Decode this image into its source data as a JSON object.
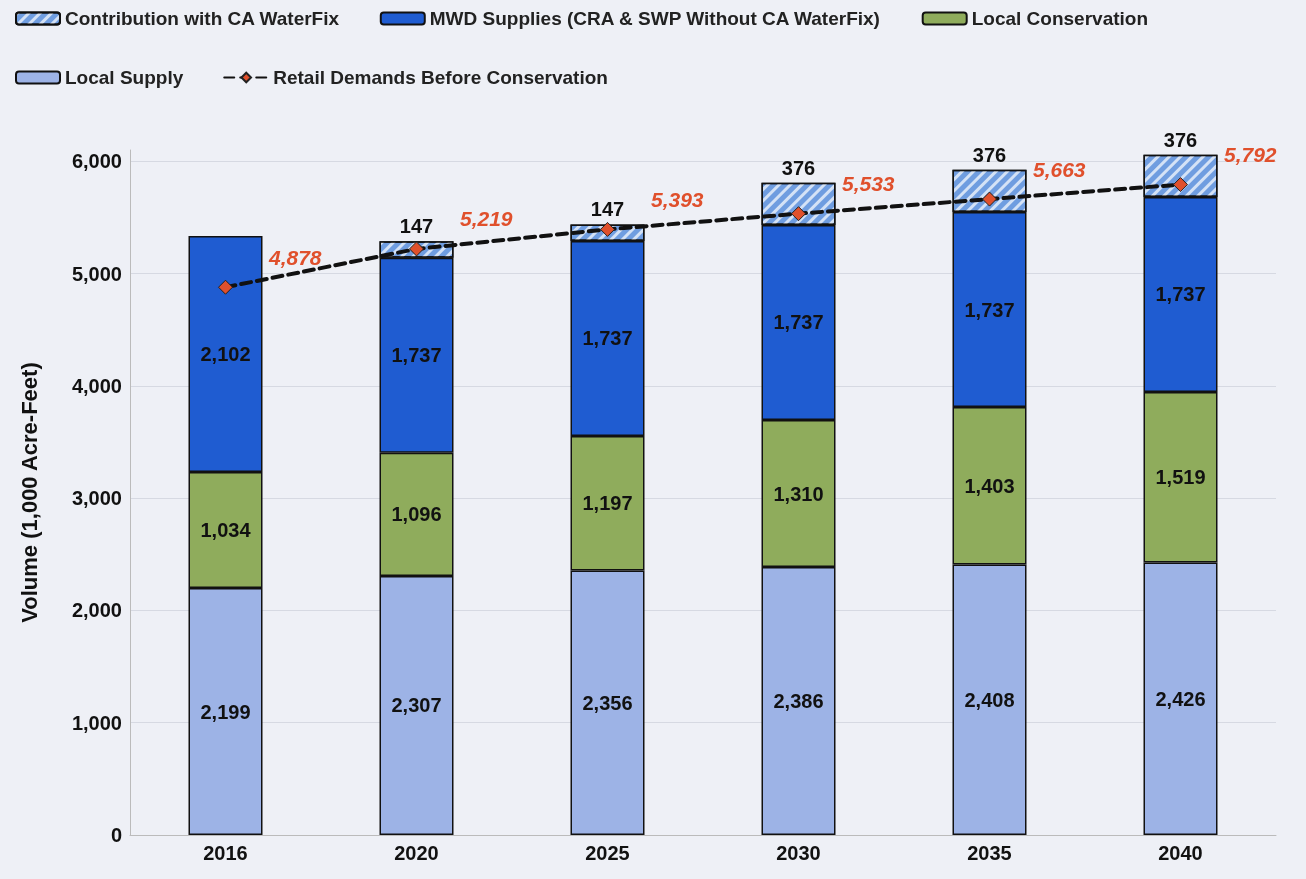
{
  "chart_data": {
    "type": "bar",
    "stacked": true,
    "ylabel": "Volume (1,000 Acre-Feet)",
    "categories": [
      "2016",
      "2020",
      "2025",
      "2030",
      "2035",
      "2040"
    ],
    "series": [
      {
        "name": "Local Supply",
        "color": "#9db3e6",
        "values": [
          2199,
          2307,
          2356,
          2386,
          2408,
          2426
        ],
        "value_labels": [
          "2,199",
          "2,307",
          "2,356",
          "2,386",
          "2,408",
          "2,426"
        ]
      },
      {
        "name": "Local Conservation",
        "color": "#8fac5c",
        "values": [
          1034,
          1096,
          1197,
          1310,
          1403,
          1519
        ],
        "value_labels": [
          "1,034",
          "1,096",
          "1,197",
          "1,310",
          "1,403",
          "1,519"
        ]
      },
      {
        "name": "MWD Supplies (CRA & SWP Without CA WaterFix)",
        "color": "#1f5cd1",
        "values": [
          2102,
          1737,
          1737,
          1737,
          1737,
          1737
        ],
        "value_labels": [
          "2,102",
          "1,737",
          "1,737",
          "1,737",
          "1,737",
          "1,737"
        ]
      },
      {
        "name": "Contribution with CA WaterFix",
        "color": "#6f9de0",
        "values": [
          null,
          147,
          147,
          376,
          376,
          376
        ],
        "value_labels": [
          null,
          "147",
          "147",
          "376",
          "376",
          "376"
        ]
      },
      {
        "name": "Retail Demands Before Conservation",
        "type": "line",
        "color": "#e0502c",
        "line_style": "dashed",
        "marker": "diamond",
        "values": [
          4878,
          5219,
          5393,
          5533,
          5663,
          5792
        ],
        "value_labels": [
          "4,878",
          "5,219",
          "5,393",
          "5,533",
          "5,663",
          "5,792"
        ]
      }
    ],
    "ylim": [
      0,
      6100
    ],
    "yticks": [
      0,
      {
        "value": 1000,
        "label": "1,000"
      },
      {
        "value": 2000,
        "label": "2,000"
      },
      {
        "value": 3000,
        "label": "3,000"
      },
      {
        "value": 4000,
        "label": "4,000"
      },
      {
        "value": 5000,
        "label": "5,000"
      },
      {
        "value": 6000,
        "label": "6,000"
      }
    ],
    "grid": "y",
    "legend": "top"
  }
}
